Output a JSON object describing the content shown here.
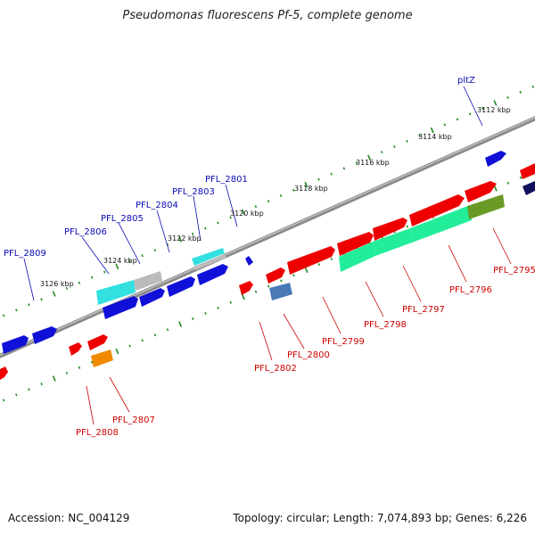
{
  "title": "Pseudomonas fluorescens Pf-5, complete genome",
  "footer": {
    "accession": "Accession: NC_004129",
    "topology": "Topology: circular; Length: 7,074,893 bp; Genes: 6,226"
  },
  "colors": {
    "forward_gene": "#1010d8",
    "reverse_gene": "#ee0000",
    "rna_cyan": "#33e0e0",
    "grey_feature": "#bbbbbb",
    "teal": "#22ee99",
    "olive": "#6a9a26",
    "steel": "#4a7ab8",
    "orange": "#f08a00",
    "navy": "#101060",
    "backbone": "#8a8a8a",
    "tick": "#1f8a1f"
  },
  "scale_labels": [
    "3112 kbp",
    "3114 kbp",
    "3116 kbp",
    "3118 kbp",
    "3120 kbp",
    "3122 kbp",
    "3124 kbp",
    "3126 kbp"
  ],
  "forward_gene_labels": [
    "pltZ",
    "PFL_2801",
    "PFL_2803",
    "PFL_2804",
    "PFL_2805",
    "PFL_2806",
    "PFL_2809"
  ],
  "reverse_gene_labels": [
    "PFL_2795",
    "PFL_2796",
    "PFL_2797",
    "PFL_2798",
    "PFL_2799",
    "PFL_2800",
    "PFL_2802",
    "PFL_2807",
    "PFL_2808"
  ]
}
